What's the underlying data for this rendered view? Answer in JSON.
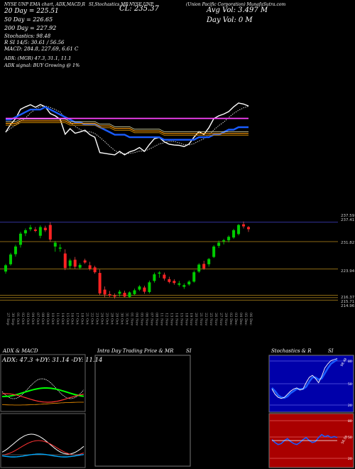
{
  "header": {
    "line1_left": "NYSE UNP  EMA chart, ADX,MACD,R",
    "line1_mid": "SI,Stochastics,MR",
    "line1_mid2": "NYSE UNP",
    "line1_right": "(Union Pacific Corporation) MunafaSutra.com",
    "close_label": "CL: 235.37",
    "avg_vol": "Avg Vol: 3.497 M",
    "day_vol": "Day Vol: 0   M",
    "sma20": "20  Day = 225.51",
    "sma50": "50  Day = 226.65",
    "sma200": "200  Day = 227.92",
    "stoch": "Stochastics: 98.48",
    "rsi": "R          SI 14/5: 30.61 / 56.56",
    "macd": "MACD: 284.8,  227.69, 6.61 C",
    "adx": "ADX:                    (MGR) 47.3,  31.1,  11.1",
    "adx_signal": "ADX  signal:                    BUY Growing @ 1%"
  },
  "price_axis": {
    "labels": [
      "237.59",
      "237.41",
      "231.82",
      "223.94",
      "216.37",
      "215.71",
      "214.96"
    ]
  },
  "date_labels": [
    "27 Sep",
    "30 Sep",
    "01 Oct",
    "02 Oct",
    "03 Oct",
    "04 Oct",
    "07 Oct",
    "08 Oct",
    "09 Oct",
    "10 Oct",
    "11 Oct",
    "14 Oct",
    "15 Oct",
    "16 Oct",
    "17 Oct",
    "18 Oct",
    "21 Oct",
    "22 Oct",
    "23 Oct",
    "24 Oct",
    "25 Oct",
    "28 Oct",
    "29 Oct",
    "30 Oct",
    "31 Oct",
    "01 Nov",
    "04 Nov",
    "05 Nov",
    "06 Nov",
    "07 Nov",
    "08 Nov",
    "11 Nov",
    "12 Nov",
    "13 Nov",
    "14 Nov",
    "15 Nov",
    "18 Nov",
    "19 Nov",
    "20 Nov",
    "21 Nov",
    "22 Nov",
    "25 Nov",
    "26 Nov",
    "27 Nov",
    "29 Nov",
    "02 Dec",
    "03 Dec",
    "04 Dec",
    "05 Dec",
    "06 Dec"
  ],
  "panels": {
    "adx_macd_title": "ADX  & MACD",
    "adx_readout": "ADX: 47.3  +DY: 31.14  -DY: 11.14",
    "intraday_title": "Intra  Day Trading Price  & MR",
    "intraday_title2": "SI",
    "stoch_title": "Stochastics  & R",
    "stoch_title2": "SI",
    "stoch_value": "98.48",
    "rsi_value": "56.56",
    "stoch_levels": [
      "80",
      "50",
      "20"
    ],
    "rsi_levels": [
      "80",
      "50",
      "20"
    ]
  },
  "colors": {
    "up": "#00cc00",
    "down": "#ff2222",
    "ema_short": "#1a5cff",
    "ema_200": "#ff44ff",
    "ema_orange": "#ff9900",
    "rsi_bg": "#aa0000",
    "stoch_bg": "#0000aa"
  },
  "chart_data": {
    "type": "candlestick",
    "candles": [
      {
        "date": "27 Sep",
        "o": 223.2,
        "h": 225.4,
        "l": 222.6,
        "c": 225.0
      },
      {
        "date": "30 Sep",
        "o": 225.3,
        "h": 228.6,
        "l": 224.9,
        "c": 228.1
      },
      {
        "date": "01 Oct",
        "o": 228.2,
        "h": 230.9,
        "l": 227.5,
        "c": 230.4
      },
      {
        "date": "02 Oct",
        "o": 230.9,
        "h": 234.6,
        "l": 230.1,
        "c": 234.1
      },
      {
        "date": "03 Oct",
        "o": 234.2,
        "h": 235.6,
        "l": 233.4,
        "c": 235.1
      },
      {
        "date": "04 Oct",
        "o": 235.4,
        "h": 236.6,
        "l": 234.8,
        "c": 235.9
      },
      {
        "date": "07 Oct",
        "o": 235.3,
        "h": 236.0,
        "l": 234.5,
        "c": 234.9
      },
      {
        "date": "08 Oct",
        "o": 233.5,
        "h": 236.5,
        "l": 232.8,
        "c": 236.0
      },
      {
        "date": "09 Oct",
        "o": 235.8,
        "h": 236.4,
        "l": 234.6,
        "c": 235.1
      },
      {
        "date": "10 Oct",
        "o": 236.6,
        "h": 237.4,
        "l": 231.8,
        "c": 232.4
      },
      {
        "date": "11 Oct",
        "o": 230.4,
        "h": 232.0,
        "l": 228.9,
        "c": 231.5
      },
      {
        "date": "14 Oct",
        "o": 229.8,
        "h": 231.1,
        "l": 228.9,
        "c": 230.1
      },
      {
        "date": "15 Oct",
        "o": 228.4,
        "h": 229.6,
        "l": 223.6,
        "c": 224.2
      },
      {
        "date": "16 Oct",
        "o": 224.8,
        "h": 226.9,
        "l": 224.0,
        "c": 226.4
      },
      {
        "date": "17 Oct",
        "o": 226.6,
        "h": 227.4,
        "l": 224.0,
        "c": 224.6
      },
      {
        "date": "18 Oct",
        "o": 224.3,
        "h": 225.6,
        "l": 223.8,
        "c": 225.1
      },
      {
        "date": "21 Oct",
        "o": 226.4,
        "h": 226.9,
        "l": 225.4,
        "c": 225.8
      },
      {
        "date": "22 Oct",
        "o": 225.0,
        "h": 226.0,
        "l": 223.5,
        "c": 224.0
      },
      {
        "date": "23 Oct",
        "o": 224.4,
        "h": 224.9,
        "l": 222.6,
        "c": 223.0
      },
      {
        "date": "24 Oct",
        "o": 222.8,
        "h": 223.8,
        "l": 216.4,
        "c": 216.9
      },
      {
        "date": "25 Oct",
        "o": 218.0,
        "h": 218.9,
        "l": 215.8,
        "c": 216.6
      },
      {
        "date": "28 Oct",
        "o": 216.7,
        "h": 217.6,
        "l": 215.9,
        "c": 216.3
      },
      {
        "date": "29 Oct",
        "o": 216.3,
        "h": 216.9,
        "l": 215.4,
        "c": 216.0
      },
      {
        "date": "30 Oct",
        "o": 216.8,
        "h": 217.9,
        "l": 216.0,
        "c": 217.4
      },
      {
        "date": "31 Oct",
        "o": 217.1,
        "h": 217.7,
        "l": 215.8,
        "c": 216.0
      },
      {
        "date": "01 Nov",
        "o": 215.9,
        "h": 217.5,
        "l": 215.6,
        "c": 217.2
      },
      {
        "date": "04 Nov",
        "o": 216.7,
        "h": 218.3,
        "l": 216.4,
        "c": 217.8
      },
      {
        "date": "05 Nov",
        "o": 218.0,
        "h": 219.3,
        "l": 217.6,
        "c": 218.9
      },
      {
        "date": "06 Nov",
        "o": 218.6,
        "h": 219.1,
        "l": 216.8,
        "c": 217.4
      },
      {
        "date": "07 Nov",
        "o": 217.3,
        "h": 220.6,
        "l": 216.9,
        "c": 220.1
      },
      {
        "date": "08 Nov",
        "o": 220.5,
        "h": 222.9,
        "l": 220.0,
        "c": 222.4
      },
      {
        "date": "11 Nov",
        "o": 222.6,
        "h": 223.3,
        "l": 221.4,
        "c": 222.9
      },
      {
        "date": "12 Nov",
        "o": 222.3,
        "h": 222.9,
        "l": 220.6,
        "c": 221.2
      },
      {
        "date": "13 Nov",
        "o": 221.0,
        "h": 221.7,
        "l": 219.8,
        "c": 220.2
      },
      {
        "date": "14 Nov",
        "o": 220.5,
        "h": 221.0,
        "l": 219.4,
        "c": 219.9
      },
      {
        "date": "15 Nov",
        "o": 219.4,
        "h": 220.5,
        "l": 218.9,
        "c": 219.8
      },
      {
        "date": "18 Nov",
        "o": 218.8,
        "h": 219.8,
        "l": 218.2,
        "c": 219.3
      },
      {
        "date": "19 Nov",
        "o": 219.5,
        "h": 220.7,
        "l": 219.1,
        "c": 220.3
      },
      {
        "date": "20 Nov",
        "o": 220.3,
        "h": 223.5,
        "l": 220.0,
        "c": 223.0
      },
      {
        "date": "21 Nov",
        "o": 223.2,
        "h": 225.6,
        "l": 222.8,
        "c": 225.2
      },
      {
        "date": "22 Nov",
        "o": 225.4,
        "h": 226.3,
        "l": 223.7,
        "c": 224.1
      },
      {
        "date": "25 Nov",
        "o": 225.3,
        "h": 227.1,
        "l": 224.6,
        "c": 226.8
      },
      {
        "date": "26 Nov",
        "o": 227.4,
        "h": 230.8,
        "l": 227.1,
        "c": 230.4
      },
      {
        "date": "27 Nov",
        "o": 230.6,
        "h": 232.1,
        "l": 230.0,
        "c": 231.5
      },
      {
        "date": "29 Nov",
        "o": 231.9,
        "h": 232.6,
        "l": 231.0,
        "c": 232.2
      },
      {
        "date": "02 Dec",
        "o": 232.2,
        "h": 233.6,
        "l": 231.6,
        "c": 233.2
      },
      {
        "date": "03 Dec",
        "o": 233.0,
        "h": 235.5,
        "l": 232.6,
        "c": 235.1
      },
      {
        "date": "04 Dec",
        "o": 234.0,
        "h": 236.9,
        "l": 233.6,
        "c": 236.6
      },
      {
        "date": "05 Dec",
        "o": 236.8,
        "h": 237.6,
        "l": 235.6,
        "c": 236.2
      },
      {
        "date": "06 Dec",
        "o": 236.0,
        "h": 236.3,
        "l": 234.6,
        "c": 235.4
      }
    ],
    "price_ylim": [
      213,
      240
    ],
    "reference_lines": [
      237.41,
      231.82,
      223.94,
      216.37,
      215.71,
      214.96
    ],
    "ema_series": [
      {
        "name": "20 Day",
        "values": [
          230,
          230,
          231,
          232,
          233,
          234,
          234,
          234,
          235,
          234,
          233,
          232,
          231,
          230,
          229,
          229,
          228,
          228,
          228,
          227,
          226,
          225,
          224,
          224,
          224,
          223,
          223,
          223,
          223,
          223,
          223,
          223,
          222,
          222,
          222,
          222,
          222,
          222,
          222,
          223,
          223,
          223,
          224,
          224,
          225,
          226,
          226,
          227,
          227,
          227
        ]
      },
      {
        "name": "50 Day",
        "values": [
          230,
          230,
          230,
          231,
          231,
          231,
          231,
          231,
          231,
          231,
          231,
          231,
          231,
          230,
          230,
          230,
          230,
          230,
          230,
          229,
          229,
          229,
          228,
          228,
          228,
          228,
          227,
          227,
          227,
          227,
          227,
          227,
          226,
          226,
          226,
          226,
          226,
          226,
          226,
          226,
          226,
          226,
          226,
          226,
          226,
          226,
          226,
          226,
          226,
          226
        ]
      },
      {
        "name": "200 Day",
        "values": [
          230,
          230,
          230,
          230,
          230,
          230,
          230,
          230,
          230,
          230,
          230,
          230,
          230,
          230,
          230,
          230,
          230,
          230,
          230,
          230,
          230,
          230,
          230,
          230,
          230,
          230,
          230,
          230,
          230,
          230,
          230,
          230,
          230,
          230,
          230,
          230,
          230,
          230,
          230,
          230,
          230,
          230,
          230,
          230,
          230,
          230,
          230,
          230,
          230,
          230
        ]
      }
    ]
  }
}
